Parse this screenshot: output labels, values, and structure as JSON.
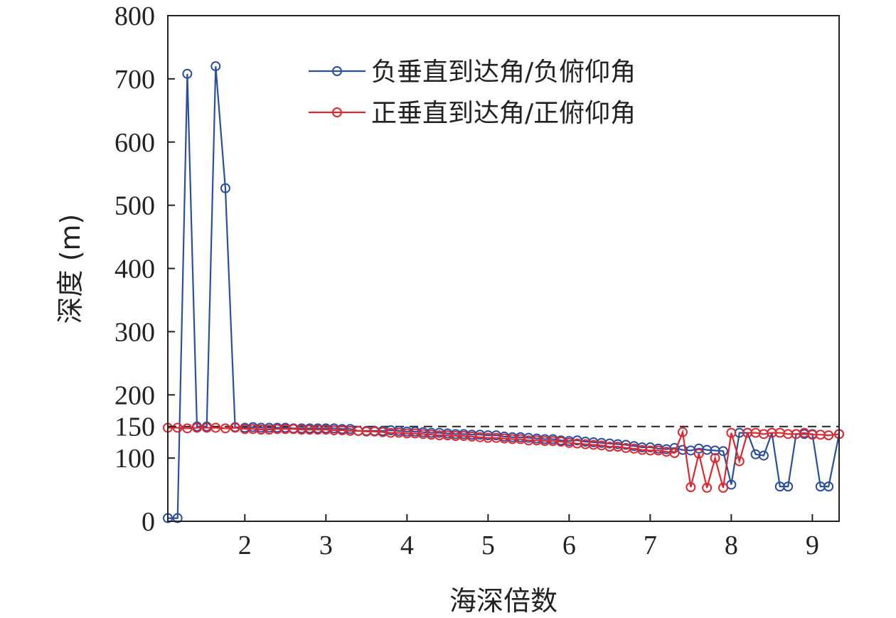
{
  "chart_data": {
    "type": "line",
    "xlabel": "海深倍数",
    "ylabel": "深度 (m)",
    "xlim": [
      1.05,
      9.33
    ],
    "ylim": [
      0,
      800
    ],
    "xticks": [
      2,
      3,
      4,
      5,
      6,
      7,
      8,
      9
    ],
    "xtick_labels": [
      "2",
      "3",
      "4",
      "5",
      "6",
      "7",
      "8",
      "9"
    ],
    "yticks": [
      0,
      100,
      150,
      200,
      300,
      400,
      500,
      600,
      700,
      800
    ],
    "ytick_labels": [
      "0",
      "100",
      "150",
      "200",
      "300",
      "400",
      "500",
      "600",
      "700",
      "800"
    ],
    "reference_line": {
      "y": 150,
      "style": "dashed",
      "color": "#222222"
    },
    "grid": false,
    "legend_position": "top-right",
    "series": [
      {
        "name": "负垂直到达角/负俯仰角",
        "color": "#2a4f9e",
        "points": [
          [
            1.05,
            5
          ],
          [
            1.17,
            5
          ],
          [
            1.29,
            708
          ],
          [
            1.41,
            150
          ],
          [
            1.53,
            150
          ],
          [
            1.64,
            720
          ],
          [
            1.76,
            527
          ],
          [
            1.88,
            149
          ],
          [
            2.0,
            148
          ],
          [
            2.1,
            149
          ],
          [
            2.2,
            148
          ],
          [
            2.3,
            148
          ],
          [
            2.4,
            148
          ],
          [
            2.5,
            148
          ],
          [
            2.6,
            147
          ],
          [
            2.7,
            147
          ],
          [
            2.8,
            147
          ],
          [
            2.9,
            147
          ],
          [
            3.0,
            147
          ],
          [
            3.1,
            147
          ],
          [
            3.2,
            146
          ],
          [
            3.3,
            146
          ],
          [
            3.4,
            143
          ],
          [
            3.5,
            143
          ],
          [
            3.6,
            143
          ],
          [
            3.7,
            143
          ],
          [
            3.8,
            144
          ],
          [
            3.9,
            143
          ],
          [
            4.0,
            142
          ],
          [
            4.1,
            142
          ],
          [
            4.2,
            141
          ],
          [
            4.3,
            140
          ],
          [
            4.4,
            140
          ],
          [
            4.5,
            139
          ],
          [
            4.6,
            138
          ],
          [
            4.7,
            138
          ],
          [
            4.8,
            137
          ],
          [
            4.9,
            137
          ],
          [
            5.0,
            136
          ],
          [
            5.1,
            136
          ],
          [
            5.2,
            134
          ],
          [
            5.3,
            133
          ],
          [
            5.4,
            133
          ],
          [
            5.5,
            132
          ],
          [
            5.6,
            131
          ],
          [
            5.7,
            130
          ],
          [
            5.8,
            130
          ],
          [
            5.9,
            128
          ],
          [
            6.0,
            127
          ],
          [
            6.1,
            128
          ],
          [
            6.2,
            126
          ],
          [
            6.3,
            125
          ],
          [
            6.4,
            124
          ],
          [
            6.5,
            123
          ],
          [
            6.6,
            122
          ],
          [
            6.7,
            121
          ],
          [
            6.8,
            119
          ],
          [
            6.9,
            117
          ],
          [
            7.0,
            117
          ],
          [
            7.1,
            115
          ],
          [
            7.2,
            114
          ],
          [
            7.3,
            116
          ],
          [
            7.4,
            113
          ],
          [
            7.5,
            112
          ],
          [
            7.6,
            115
          ],
          [
            7.7,
            113
          ],
          [
            7.8,
            112
          ],
          [
            7.9,
            111
          ],
          [
            8.0,
            58
          ],
          [
            8.1,
            140
          ],
          [
            8.2,
            140
          ],
          [
            8.3,
            106
          ],
          [
            8.4,
            104
          ],
          [
            8.5,
            140
          ],
          [
            8.6,
            55
          ],
          [
            8.7,
            55
          ],
          [
            8.8,
            138
          ],
          [
            8.9,
            138
          ],
          [
            9.0,
            138
          ],
          [
            9.1,
            55
          ],
          [
            9.2,
            55
          ],
          [
            9.33,
            138
          ]
        ]
      },
      {
        "name": "正垂直到达角/正俯仰角",
        "color": "#e0262e",
        "points": [
          [
            1.05,
            148
          ],
          [
            1.17,
            148
          ],
          [
            1.29,
            147
          ],
          [
            1.41,
            148
          ],
          [
            1.53,
            148
          ],
          [
            1.64,
            148
          ],
          [
            1.76,
            147
          ],
          [
            1.88,
            148
          ],
          [
            2.0,
            146
          ],
          [
            2.1,
            146
          ],
          [
            2.2,
            145
          ],
          [
            2.3,
            145
          ],
          [
            2.4,
            146
          ],
          [
            2.5,
            146
          ],
          [
            2.6,
            146
          ],
          [
            2.7,
            145
          ],
          [
            2.8,
            145
          ],
          [
            2.9,
            145
          ],
          [
            3.0,
            145
          ],
          [
            3.1,
            144
          ],
          [
            3.2,
            144
          ],
          [
            3.3,
            143
          ],
          [
            3.4,
            143
          ],
          [
            3.5,
            142
          ],
          [
            3.6,
            142
          ],
          [
            3.7,
            141
          ],
          [
            3.8,
            140
          ],
          [
            3.9,
            140
          ],
          [
            4.0,
            139
          ],
          [
            4.1,
            139
          ],
          [
            4.2,
            138
          ],
          [
            4.3,
            137
          ],
          [
            4.4,
            136
          ],
          [
            4.5,
            136
          ],
          [
            4.6,
            135
          ],
          [
            4.7,
            135
          ],
          [
            4.8,
            134
          ],
          [
            4.9,
            133
          ],
          [
            5.0,
            132
          ],
          [
            5.1,
            132
          ],
          [
            5.2,
            131
          ],
          [
            5.3,
            130
          ],
          [
            5.4,
            130
          ],
          [
            5.5,
            128
          ],
          [
            5.6,
            128
          ],
          [
            5.7,
            127
          ],
          [
            5.8,
            127
          ],
          [
            5.9,
            126
          ],
          [
            6.0,
            124
          ],
          [
            6.1,
            123
          ],
          [
            6.2,
            122
          ],
          [
            6.3,
            121
          ],
          [
            6.4,
            120
          ],
          [
            6.5,
            118
          ],
          [
            6.6,
            118
          ],
          [
            6.7,
            116
          ],
          [
            6.8,
            115
          ],
          [
            6.9,
            113
          ],
          [
            7.0,
            112
          ],
          [
            7.1,
            112
          ],
          [
            7.2,
            110
          ],
          [
            7.3,
            108
          ],
          [
            7.4,
            141
          ],
          [
            7.5,
            54
          ],
          [
            7.6,
            107
          ],
          [
            7.7,
            53
          ],
          [
            7.8,
            100
          ],
          [
            7.9,
            53
          ],
          [
            8.0,
            140
          ],
          [
            8.1,
            95
          ],
          [
            8.2,
            140
          ],
          [
            8.3,
            140
          ],
          [
            8.4,
            138
          ],
          [
            8.5,
            140
          ],
          [
            8.6,
            140
          ],
          [
            8.7,
            138
          ],
          [
            8.8,
            138
          ],
          [
            8.9,
            140
          ],
          [
            9.0,
            137
          ],
          [
            9.1,
            137
          ],
          [
            9.2,
            136
          ],
          [
            9.33,
            138
          ]
        ]
      }
    ]
  }
}
